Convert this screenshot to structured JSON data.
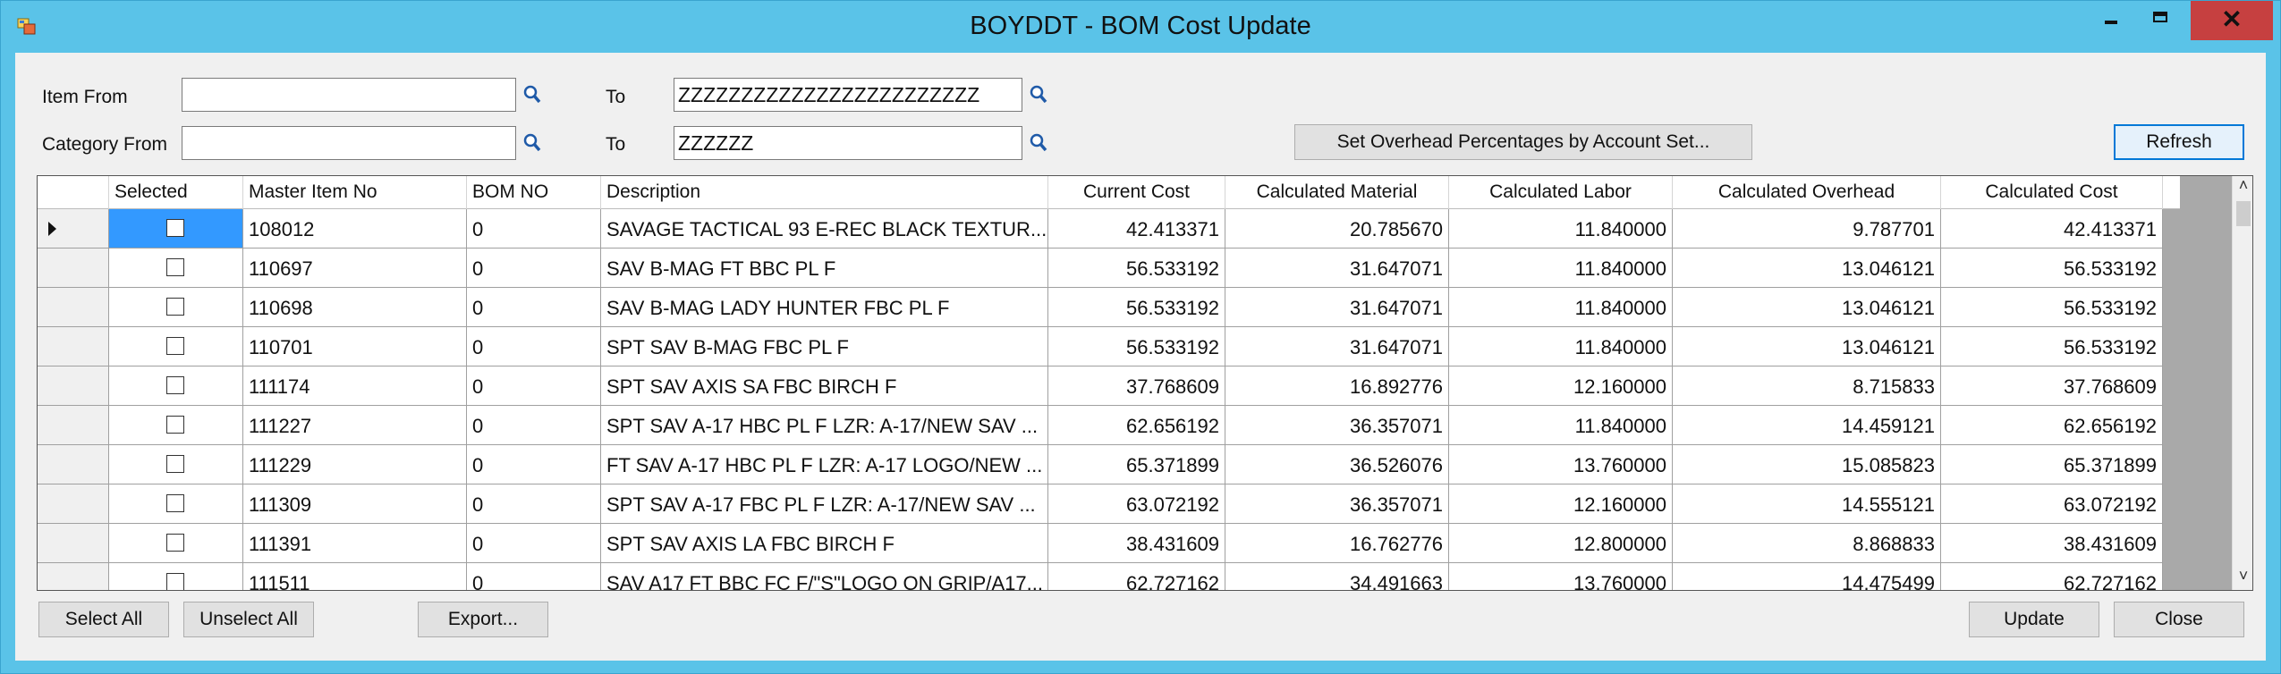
{
  "window": {
    "title": "BOYDDT - BOM Cost Update",
    "close_glyph": "✕"
  },
  "filters": {
    "item_from_label": "Item From",
    "item_from_value": "",
    "item_to_label": "To",
    "item_to_value": "ZZZZZZZZZZZZZZZZZZZZZZZZ",
    "category_from_label": "Category From",
    "category_from_value": "",
    "category_to_label": "To",
    "category_to_value": "ZZZZZZ"
  },
  "buttons": {
    "set_overhead": "Set Overhead Percentages by Account Set...",
    "refresh": "Refresh",
    "select_all": "Select All",
    "unselect_all": "Unselect All",
    "export": "Export...",
    "update": "Update",
    "close": "Close"
  },
  "grid": {
    "columns": [
      "Selected",
      "Master Item No",
      "BOM NO",
      "Description",
      "Current Cost",
      "Calculated Material",
      "Calculated Labor",
      "Calculated Overhead",
      "Calculated Cost"
    ],
    "rows": [
      [
        "108012",
        "0",
        "SAVAGE TACTICAL 93 E-REC BLACK TEXTUR...",
        "42.413371",
        "20.785670",
        "11.840000",
        "9.787701",
        "42.413371"
      ],
      [
        "110697",
        "0",
        "SAV B-MAG FT BBC PL F",
        "56.533192",
        "31.647071",
        "11.840000",
        "13.046121",
        "56.533192"
      ],
      [
        "110698",
        "0",
        "SAV B-MAG LADY HUNTER FBC PL F",
        "56.533192",
        "31.647071",
        "11.840000",
        "13.046121",
        "56.533192"
      ],
      [
        "110701",
        "0",
        "SPT SAV B-MAG FBC PL F",
        "56.533192",
        "31.647071",
        "11.840000",
        "13.046121",
        "56.533192"
      ],
      [
        "111174",
        "0",
        "SPT SAV AXIS SA FBC BIRCH F",
        "37.768609",
        "16.892776",
        "12.160000",
        "8.715833",
        "37.768609"
      ],
      [
        "111227",
        "0",
        "SPT SAV A-17 HBC PL F LZR: A-17/NEW SAV ...",
        "62.656192",
        "36.357071",
        "11.840000",
        "14.459121",
        "62.656192"
      ],
      [
        "111229",
        "0",
        "FT SAV A-17 HBC PL F LZR: A-17 LOGO/NEW ...",
        "65.371899",
        "36.526076",
        "13.760000",
        "15.085823",
        "65.371899"
      ],
      [
        "111309",
        "0",
        "SPT SAV A-17 FBC PL F LZR: A-17/NEW SAV ...",
        "63.072192",
        "36.357071",
        "12.160000",
        "14.555121",
        "63.072192"
      ],
      [
        "111391",
        "0",
        "SPT SAV AXIS LA FBC BIRCH F",
        "38.431609",
        "16.762776",
        "12.800000",
        "8.868833",
        "38.431609"
      ],
      [
        "111511",
        "0",
        "SAV A17 FT BBC FC F/\"S\"LOGO ON GRIP/A17...",
        "62.727162",
        "34.491663",
        "13.760000",
        "14.475499",
        "62.727162"
      ]
    ]
  },
  "icons": {
    "lookup": "magnifier-icon",
    "scroll_up": "chevron-up-icon",
    "scroll_down": "chevron-down-icon"
  }
}
